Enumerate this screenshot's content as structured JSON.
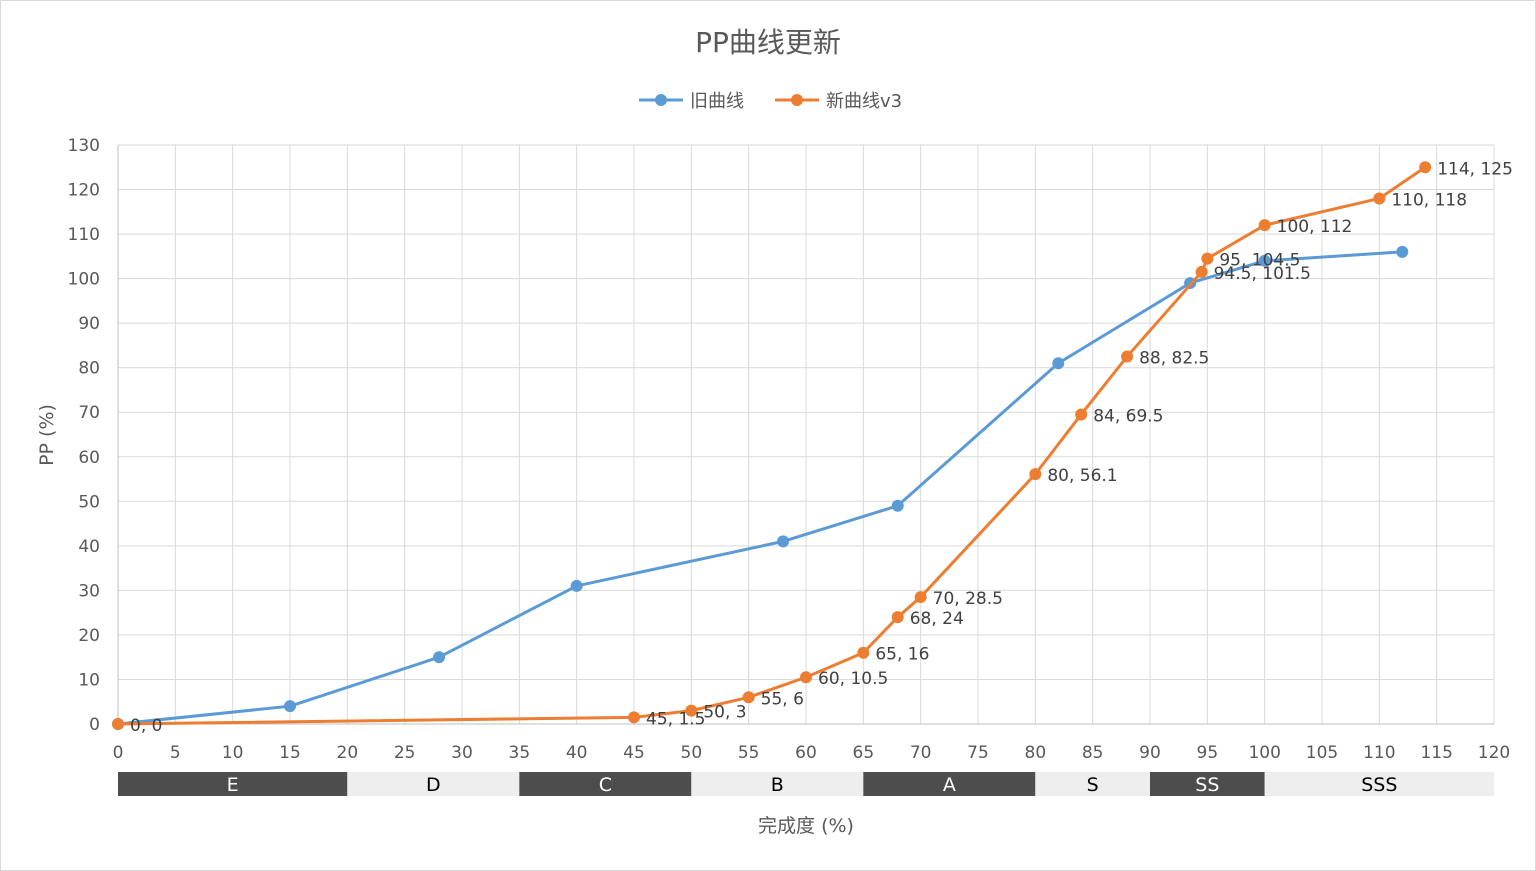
{
  "chart_data": {
    "type": "line",
    "title": "PP曲线更新",
    "xlabel": "完成度 (%)",
    "ylabel": "PP (%)",
    "xlim": [
      0,
      120
    ],
    "ylim": [
      0,
      130
    ],
    "x_ticks": [
      "0",
      "5",
      "10",
      "15",
      "20",
      "25",
      "30",
      "35",
      "40",
      "45",
      "50",
      "55",
      "60",
      "65",
      "70",
      "75",
      "80",
      "85",
      "90",
      "95",
      "100",
      "105",
      "110",
      "115",
      "120"
    ],
    "y_ticks": [
      "0",
      "10",
      "20",
      "30",
      "40",
      "50",
      "60",
      "70",
      "80",
      "90",
      "100",
      "110",
      "120",
      "130"
    ],
    "grid": true,
    "legend_position": "top",
    "series": [
      {
        "name": "旧曲线",
        "color": "#5b9bd5",
        "points": [
          [
            0,
            0
          ],
          [
            15,
            4
          ],
          [
            28,
            15
          ],
          [
            40,
            31
          ],
          [
            58,
            41
          ],
          [
            68,
            49
          ],
          [
            82,
            81
          ],
          [
            93.5,
            99
          ],
          [
            100,
            104
          ],
          [
            112,
            106
          ]
        ]
      },
      {
        "name": "新曲线v3",
        "color": "#ed7d31",
        "points": [
          [
            0,
            0
          ],
          [
            45,
            1.5
          ],
          [
            50,
            3
          ],
          [
            55,
            6
          ],
          [
            60,
            10.5
          ],
          [
            65,
            16
          ],
          [
            68,
            24
          ],
          [
            70,
            28.5
          ],
          [
            80,
            56.1
          ],
          [
            84,
            69.5
          ],
          [
            88,
            82.5
          ],
          [
            94.5,
            101.5
          ],
          [
            95,
            104.5
          ],
          [
            100,
            112
          ],
          [
            110,
            118
          ],
          [
            114,
            125
          ]
        ],
        "labels": [
          "0, 0",
          "45, 1.5",
          "50, 3",
          "55, 6",
          "60, 10.5",
          "65, 16",
          "68, 24",
          "70, 28.5",
          "80, 56.1",
          "84, 69.5",
          "88, 82.5",
          "94.5, 101.5",
          "95, 104.5",
          "100, 112",
          "110, 118",
          "114, 125"
        ]
      }
    ],
    "grade_bands": [
      {
        "label": "E",
        "from": 0,
        "to": 20,
        "style": "dark"
      },
      {
        "label": "D",
        "from": 20,
        "to": 35,
        "style": "light"
      },
      {
        "label": "C",
        "from": 35,
        "to": 50,
        "style": "dark"
      },
      {
        "label": "B",
        "from": 50,
        "to": 65,
        "style": "light"
      },
      {
        "label": "A",
        "from": 65,
        "to": 80,
        "style": "dark"
      },
      {
        "label": "S",
        "from": 80,
        "to": 90,
        "style": "light"
      },
      {
        "label": "SS",
        "from": 90,
        "to": 100,
        "style": "dark"
      },
      {
        "label": "SSS",
        "from": 100,
        "to": 120,
        "style": "light"
      }
    ],
    "band_colors": {
      "dark": "#4d4d4d",
      "light": "#eeeeee",
      "dark_text": "#ffffff",
      "light_text": "#000000"
    }
  }
}
